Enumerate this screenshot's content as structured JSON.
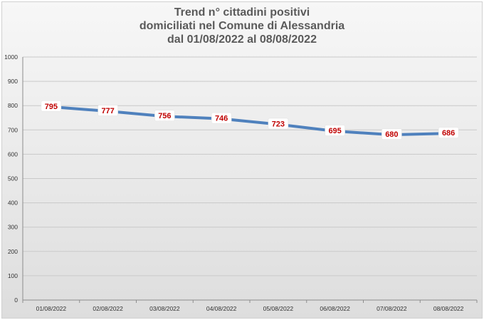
{
  "chart_data": {
    "type": "line",
    "title": [
      "Trend n° cittadini positivi",
      "domiciliati nel Comune di Alessandria",
      "dal 01/08/2022 al 08/08/2022"
    ],
    "categories": [
      "01/08/2022",
      "02/08/2022",
      "03/08/2022",
      "04/08/2022",
      "05/08/2022",
      "06/08/2022",
      "07/08/2022",
      "08/08/2022"
    ],
    "values": [
      795,
      777,
      756,
      746,
      723,
      695,
      680,
      686
    ],
    "ylim": [
      0,
      1000
    ],
    "yticks": [
      0,
      100,
      200,
      300,
      400,
      500,
      600,
      700,
      800,
      900,
      1000
    ],
    "xlabel": "",
    "ylabel": "",
    "grid": true,
    "line_color": "#4f81bd",
    "label_color": "#c00000"
  }
}
